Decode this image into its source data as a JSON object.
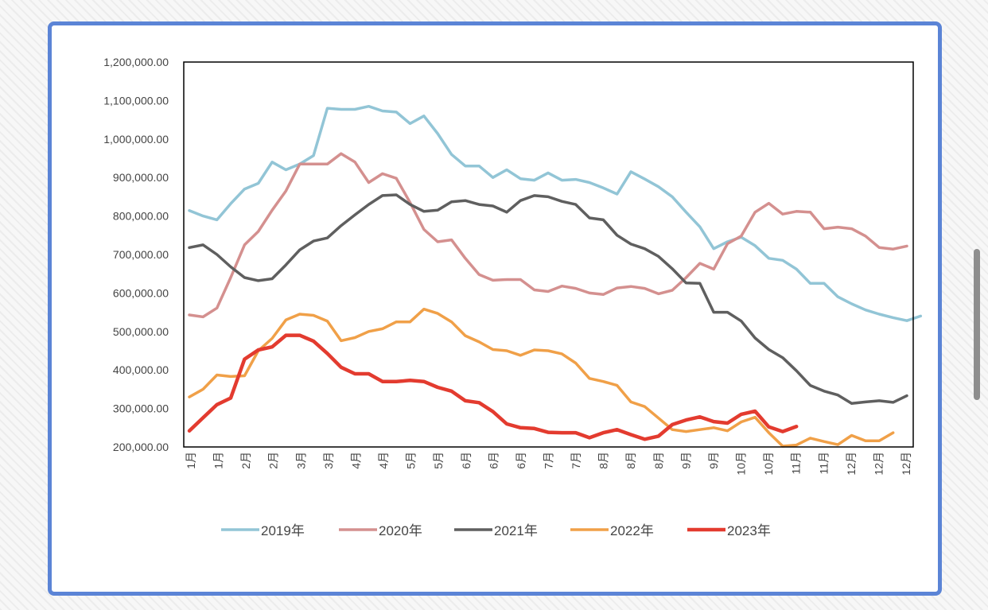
{
  "chart_data": {
    "type": "line",
    "title": "",
    "xlabel": "",
    "ylabel": "",
    "ylim": [
      200000,
      1200000
    ],
    "y_ticks": [
      "1,200,000.00",
      "1,100,000.00",
      "1,000,000.00",
      "900,000.00",
      "800,000.00",
      "700,000.00",
      "600,000.00",
      "500,000.00",
      "400,000.00",
      "300,000.00",
      "200,000.00"
    ],
    "x_labels": [
      "1月",
      "1月",
      "2月",
      "2月",
      "3月",
      "3月",
      "4月",
      "4月",
      "5月",
      "5月",
      "6月",
      "6月",
      "6月",
      "7月",
      "7月",
      "8月",
      "8月",
      "8月",
      "9月",
      "9月",
      "10月",
      "10月",
      "11月",
      "11月",
      "12月",
      "12月",
      "12月"
    ],
    "grid": false,
    "legend_position": "bottom",
    "series": [
      {
        "name": "2019年",
        "color": "#92c5d6",
        "width": 3.5,
        "values": [
          814000,
          800000,
          790000,
          832000,
          870000,
          885000,
          940000,
          920000,
          935000,
          957000,
          1080000,
          1077000,
          1077000,
          1085000,
          1073000,
          1070000,
          1040000,
          1060000,
          1014000,
          960000,
          930000,
          930000,
          900000,
          920000,
          897000,
          893000,
          912000,
          893000,
          895000,
          887000,
          873000,
          857000,
          915000,
          896000,
          876000,
          850000,
          810000,
          772000,
          715000,
          733000,
          745000,
          723000,
          690000,
          685000,
          662000,
          625000,
          625000,
          590000,
          572000,
          556000,
          545000,
          536000,
          528000,
          540000
        ]
      },
      {
        "name": "2020年",
        "color": "#d4908f",
        "width": 3.5,
        "values": [
          543000,
          538000,
          561000,
          640000,
          725000,
          760000,
          815000,
          865000,
          935000,
          935000,
          935000,
          962000,
          940000,
          887000,
          910000,
          898000,
          835000,
          765000,
          733000,
          738000,
          690000,
          648000,
          633000,
          635000,
          635000,
          608000,
          604000,
          618000,
          612000,
          600000,
          596000,
          613000,
          617000,
          612000,
          598000,
          607000,
          640000,
          677000,
          662000,
          728000,
          748000,
          810000,
          833000,
          805000,
          812000,
          810000,
          767000,
          771000,
          767000,
          748000,
          718000,
          714000,
          722000
        ]
      },
      {
        "name": "2021年",
        "color": "#5f5f5f",
        "width": 3.5,
        "values": [
          718000,
          725000,
          700000,
          668000,
          640000,
          632000,
          637000,
          673000,
          712000,
          735000,
          743000,
          775000,
          803000,
          830000,
          853000,
          855000,
          830000,
          812000,
          815000,
          837000,
          840000,
          830000,
          826000,
          810000,
          840000,
          853000,
          850000,
          838000,
          830000,
          795000,
          790000,
          750000,
          727000,
          715000,
          695000,
          663000,
          626000,
          625000,
          550000,
          550000,
          527000,
          483000,
          453000,
          432000,
          398000,
          360000,
          345000,
          335000,
          313000,
          317000,
          320000,
          316000,
          333000
        ]
      },
      {
        "name": "2022年",
        "color": "#f0a048",
        "width": 3.5,
        "values": [
          330000,
          350000,
          387000,
          383000,
          385000,
          450000,
          482000,
          530000,
          545000,
          542000,
          527000,
          476000,
          484000,
          500000,
          507000,
          525000,
          525000,
          558000,
          547000,
          525000,
          489000,
          473000,
          453000,
          450000,
          438000,
          452000,
          450000,
          442000,
          418000,
          378000,
          370000,
          360000,
          317000,
          305000,
          275000,
          245000,
          240000,
          245000,
          250000,
          242000,
          265000,
          277000,
          237000,
          202000,
          205000,
          223000,
          214000,
          206000,
          230000,
          216000,
          216000,
          237000
        ]
      },
      {
        "name": "2023年",
        "color": "#e33b2f",
        "width": 4.5,
        "values": [
          242000,
          276000,
          310000,
          327000,
          428000,
          452000,
          460000,
          490000,
          490000,
          475000,
          443000,
          407000,
          390000,
          390000,
          370000,
          370000,
          373000,
          370000,
          355000,
          345000,
          320000,
          315000,
          292000,
          260000,
          250000,
          248000,
          238000,
          237000,
          237000,
          224000,
          237000,
          245000,
          232000,
          220000,
          228000,
          258000,
          270000,
          278000,
          266000,
          262000,
          285000,
          293000,
          252000,
          240000,
          253000
        ]
      }
    ]
  }
}
